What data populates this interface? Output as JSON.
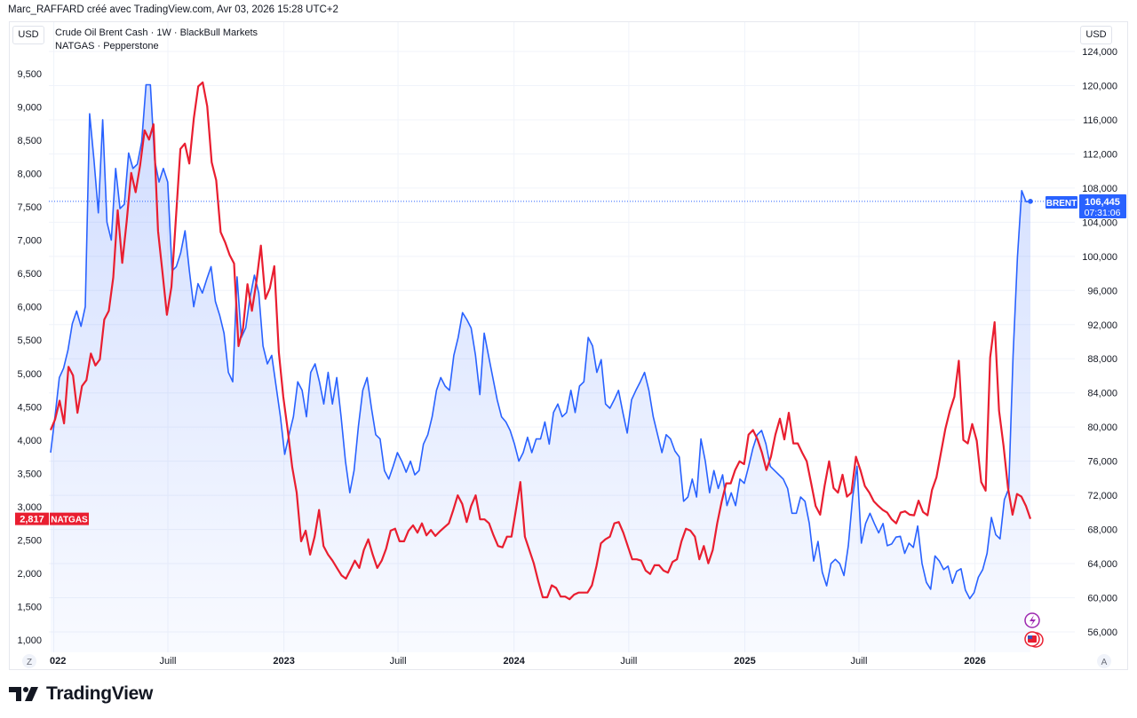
{
  "header": {
    "credit": "Marc_RAFFARD créé avec TradingView.com, Avr 03, 2026 15:28 UTC+2"
  },
  "legend": {
    "line1": "Crude Oil Brent Cash · 1W · BlackBull Markets",
    "line2": "NATGAS · Pepperstone"
  },
  "left_currency": "USD",
  "right_currency": "USD",
  "brand": "TradingView",
  "buttons": {
    "left_scale": "Z",
    "right_scale": "A"
  },
  "icons": [
    "lightning-event-icon",
    "us-flag-event-icon"
  ],
  "colors": {
    "brent": "#2962ff",
    "natgas": "#e91e30",
    "grid": "#f0f3fa",
    "event_purple": "#9c27b0"
  },
  "price_labels": {
    "brent": {
      "name": "BRENT",
      "value": "106,445",
      "countdown": "07:31:06"
    },
    "natgas": {
      "name": "NATGAS",
      "value": "2,817"
    }
  },
  "chart_data": {
    "type": "line",
    "start": "2021-12-27",
    "end": "2026-03-30",
    "interval": "1W",
    "left_axis": {
      "ticks": [
        "9,500",
        "9,000",
        "8,500",
        "8,000",
        "7,500",
        "7,000",
        "6,500",
        "6,000",
        "5,500",
        "5,000",
        "4,500",
        "4,000",
        "3,500",
        "3,000",
        "2,500",
        "2,000",
        "1,500",
        "1,000"
      ],
      "range": [
        1000,
        9500
      ]
    },
    "right_axis": {
      "ticks": [
        "124,000",
        "120,000",
        "116,000",
        "112,000",
        "108,000",
        "104,000",
        "100,000",
        "96,000",
        "92,000",
        "88,000",
        "84,000",
        "80,000",
        "76,000",
        "72,000",
        "68,000",
        "64,000",
        "60,000",
        "56,000"
      ],
      "range": [
        56000,
        124000
      ]
    },
    "x_ticks": [
      {
        "label": "022",
        "date": "2022-01-01",
        "year": true
      },
      {
        "label": "Juill",
        "date": "2022-07-01",
        "year": false
      },
      {
        "label": "2023",
        "date": "2023-01-01",
        "year": true
      },
      {
        "label": "Juill",
        "date": "2023-07-01",
        "year": false
      },
      {
        "label": "2024",
        "date": "2024-01-01",
        "year": true
      },
      {
        "label": "Juill",
        "date": "2024-07-01",
        "year": false
      },
      {
        "label": "2025",
        "date": "2025-01-01",
        "year": true
      },
      {
        "label": "Juill",
        "date": "2025-07-01",
        "year": false
      },
      {
        "label": "2026",
        "date": "2026-01-01",
        "year": true
      }
    ],
    "series": [
      {
        "name": "BRENT",
        "axis": "right",
        "style": "area",
        "values": [
          77000,
          81200,
          85800,
          86900,
          89000,
          92100,
          93600,
          91800,
          94100,
          116700,
          111300,
          105100,
          116000,
          104000,
          101900,
          110300,
          105600,
          106100,
          112100,
          110300,
          110800,
          113400,
          120100,
          120100,
          111300,
          108700,
          110300,
          108700,
          98300,
          98800,
          100400,
          103000,
          98300,
          94100,
          96800,
          95700,
          97300,
          98800,
          94700,
          93100,
          91000,
          86400,
          85300,
          97600,
          90500,
          91600,
          95200,
          97800,
          95700,
          89500,
          87400,
          88400,
          84800,
          81200,
          76800,
          79100,
          81200,
          85300,
          84300,
          81200,
          86400,
          87400,
          85300,
          82700,
          86400,
          82700,
          85800,
          81200,
          76000,
          72300,
          74900,
          80100,
          84300,
          85800,
          82200,
          79100,
          78600,
          74900,
          73900,
          75400,
          77000,
          76000,
          74700,
          76000,
          74400,
          74900,
          78000,
          79100,
          81200,
          84300,
          85800,
          84800,
          84300,
          88400,
          90500,
          93400,
          92600,
          91600,
          88400,
          83800,
          91000,
          88400,
          85800,
          83200,
          81200,
          80600,
          79600,
          78000,
          76000,
          77000,
          78800,
          77000,
          78600,
          78600,
          80600,
          78000,
          81700,
          82700,
          81200,
          81700,
          84300,
          81700,
          84800,
          85300,
          90500,
          89500,
          86400,
          87900,
          82700,
          82200,
          83200,
          84300,
          81700,
          79300,
          83200,
          84300,
          85300,
          86400,
          84300,
          81200,
          79100,
          77000,
          79100,
          78600,
          77200,
          76500,
          71300,
          71800,
          73900,
          71800,
          78600,
          76000,
          72300,
          74900,
          72800,
          74400,
          70800,
          72300,
          70800,
          73900,
          73400,
          75400,
          77500,
          79100,
          79600,
          78000,
          75400,
          74900,
          74400,
          73900,
          72800,
          69900,
          69900,
          71800,
          71300,
          68700,
          64300,
          66600,
          63000,
          61400,
          64000,
          64500,
          64000,
          62600,
          66100,
          71800,
          75400,
          66400,
          68700,
          69900,
          68700,
          67600,
          68700,
          66100,
          66300,
          67100,
          67200,
          65200,
          66400,
          65900,
          68400,
          64000,
          61800,
          61000,
          64900,
          64300,
          63300,
          63700,
          61700,
          63100,
          63400,
          60900,
          59900,
          60600,
          62400,
          63300,
          65200,
          69400,
          67400,
          66900,
          71500,
          72800,
          88400,
          99900,
          107700,
          106400,
          106445
        ]
      },
      {
        "name": "NATGAS",
        "axis": "left",
        "style": "line",
        "values": [
          4150,
          4310,
          4590,
          4250,
          5100,
          4970,
          4410,
          4810,
          4900,
          5300,
          5120,
          5210,
          5810,
          5940,
          6440,
          7450,
          6660,
          7280,
          8010,
          7720,
          8120,
          8650,
          8510,
          8740,
          7140,
          6520,
          5880,
          6300,
          7320,
          8370,
          8450,
          8150,
          8830,
          9310,
          9370,
          9010,
          8170,
          7900,
          7120,
          6970,
          6780,
          6650,
          5410,
          5680,
          6340,
          5940,
          6380,
          6920,
          6120,
          6280,
          6610,
          5320,
          4650,
          4150,
          3590,
          3210,
          2480,
          2640,
          2280,
          2550,
          2950,
          2410,
          2280,
          2190,
          2080,
          1970,
          1920,
          2050,
          2190,
          2080,
          2350,
          2510,
          2280,
          2080,
          2190,
          2370,
          2640,
          2670,
          2480,
          2480,
          2640,
          2720,
          2610,
          2750,
          2570,
          2650,
          2560,
          2630,
          2690,
          2750,
          2950,
          3170,
          3040,
          2770,
          3010,
          3170,
          2810,
          2810,
          2750,
          2570,
          2410,
          2390,
          2550,
          2550,
          2950,
          3370,
          2550,
          2350,
          2150,
          1880,
          1640,
          1640,
          1820,
          1780,
          1650,
          1650,
          1610,
          1680,
          1710,
          1710,
          1710,
          1820,
          2110,
          2450,
          2510,
          2550,
          2750,
          2770,
          2610,
          2410,
          2210,
          2210,
          2190,
          2040,
          1990,
          2120,
          2120,
          2040,
          2010,
          2170,
          2210,
          2480,
          2670,
          2640,
          2550,
          2210,
          2410,
          2150,
          2350,
          2750,
          3080,
          3350,
          3350,
          3550,
          3680,
          3640,
          4080,
          4150,
          4010,
          3810,
          3550,
          3750,
          4080,
          4320,
          4010,
          4410,
          3950,
          3950,
          3810,
          3680,
          3350,
          3010,
          2880,
          3310,
          3680,
          3280,
          3210,
          3480,
          3150,
          3210,
          3750,
          3550,
          3310,
          3210,
          3080,
          3010,
          2950,
          2910,
          2810,
          2750,
          2910,
          2930,
          2880,
          2870,
          3090,
          2920,
          2870,
          3250,
          3440,
          3810,
          4170,
          4440,
          4650,
          5190,
          4000,
          3950,
          4240,
          3990,
          3370,
          3240,
          5240,
          5770,
          4440,
          3910,
          3280,
          2880,
          3190,
          3150,
          3010,
          2817
        ]
      }
    ],
    "grid": true
  }
}
